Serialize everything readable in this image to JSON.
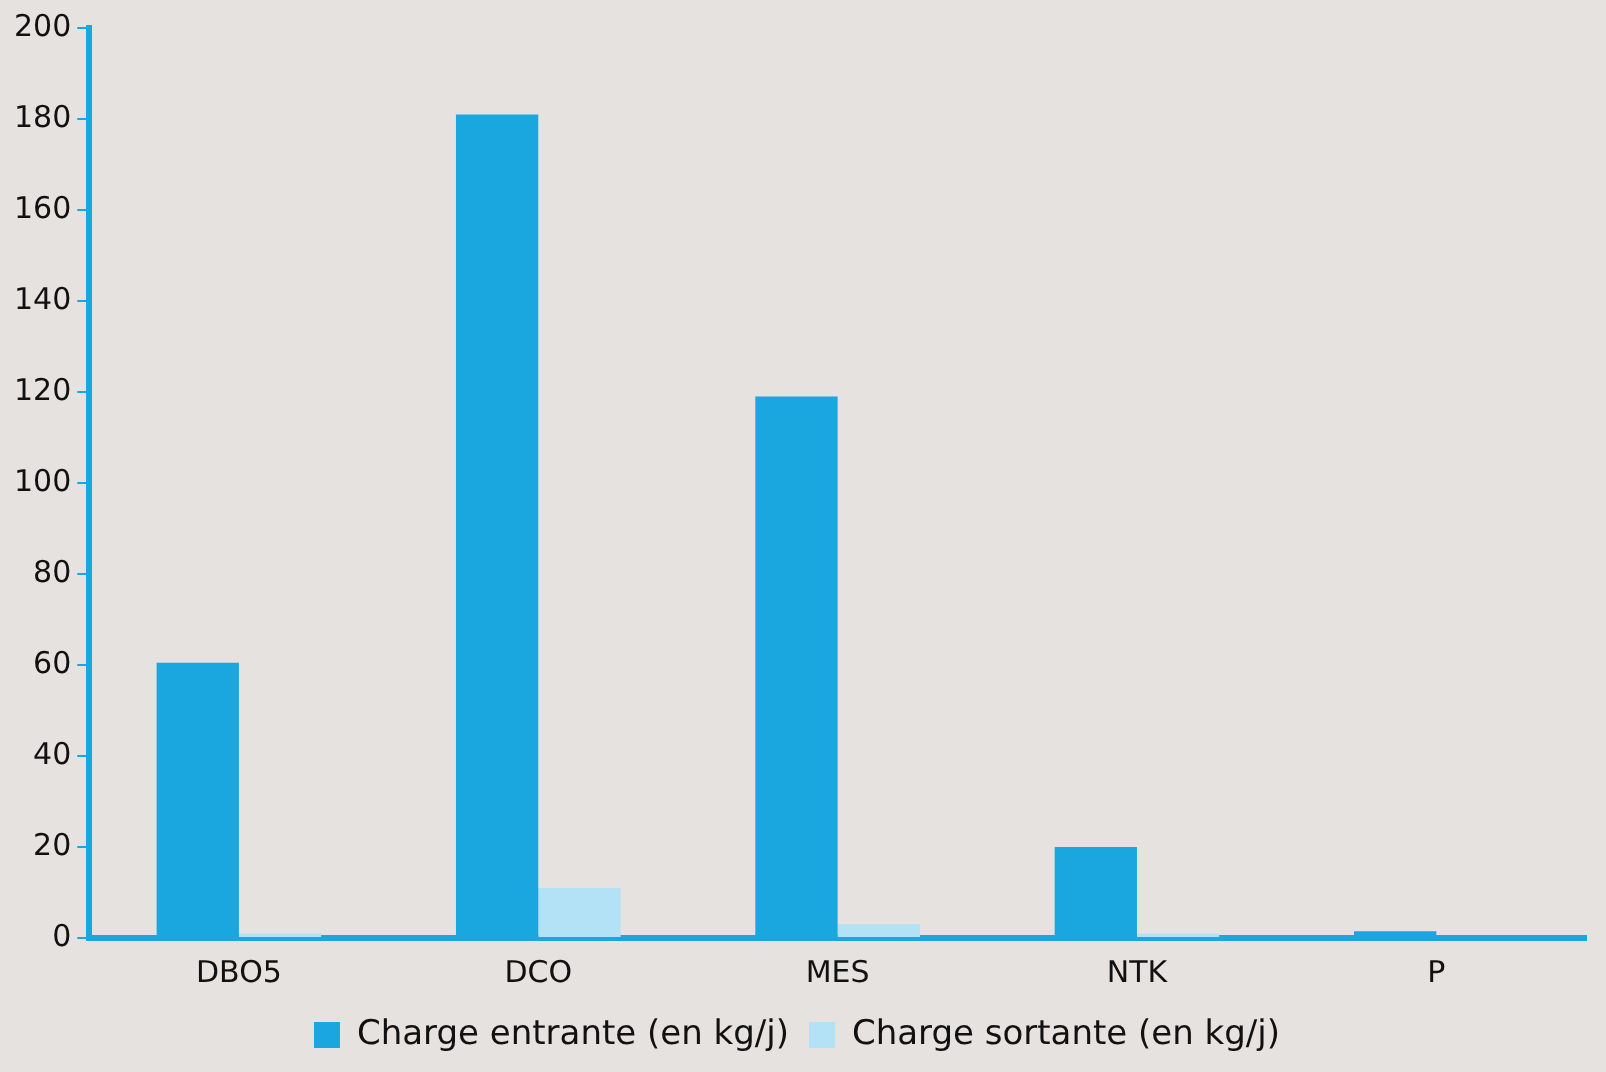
{
  "chart_data": {
    "type": "bar",
    "categories": [
      "DBO5",
      "DCO",
      "MES",
      "NTK",
      "P"
    ],
    "series": [
      {
        "name": "Charge entrante (en kg/j)",
        "color": "#1aa7e0",
        "values": [
          60.5,
          181,
          119,
          20,
          1.5
        ]
      },
      {
        "name": "Charge sortante (en kg/j)",
        "color": "#b3e1f5",
        "values": [
          1,
          11,
          3,
          1,
          null
        ]
      }
    ],
    "ylim": [
      0,
      200
    ],
    "yticks": [
      0,
      20,
      40,
      60,
      80,
      100,
      120,
      140,
      160,
      180,
      200
    ],
    "grid": false,
    "legend": "bottom"
  }
}
